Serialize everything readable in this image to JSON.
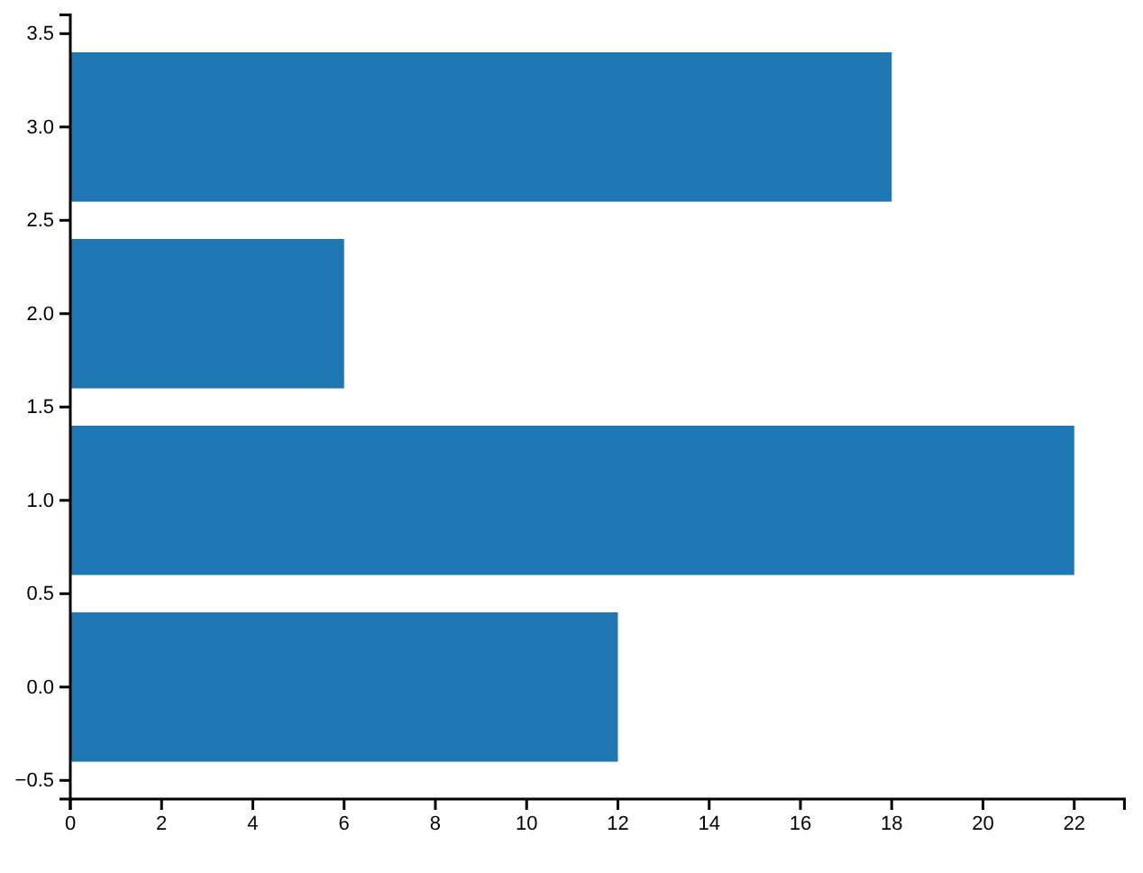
{
  "chart_data": {
    "type": "bar",
    "orientation": "horizontal",
    "x": [
      0,
      1,
      2,
      3
    ],
    "values": [
      12,
      22,
      6,
      18
    ],
    "color": "#1f77b4",
    "xlim": [
      0,
      23.1
    ],
    "xticks": [
      0,
      2,
      4,
      6,
      8,
      10,
      12,
      14,
      16,
      18,
      20,
      22
    ],
    "ylim": [
      -0.6,
      3.6
    ],
    "yticks": [
      {
        "value": -0.5,
        "label": "−0.5"
      },
      {
        "value": 0,
        "label": "0.0"
      },
      0.5,
      {
        "value": 1,
        "label": "1.0"
      },
      1.5,
      {
        "value": 2,
        "label": "2.0"
      },
      2.5,
      {
        "value": 3,
        "label": "3.0"
      },
      3.5
    ]
  }
}
